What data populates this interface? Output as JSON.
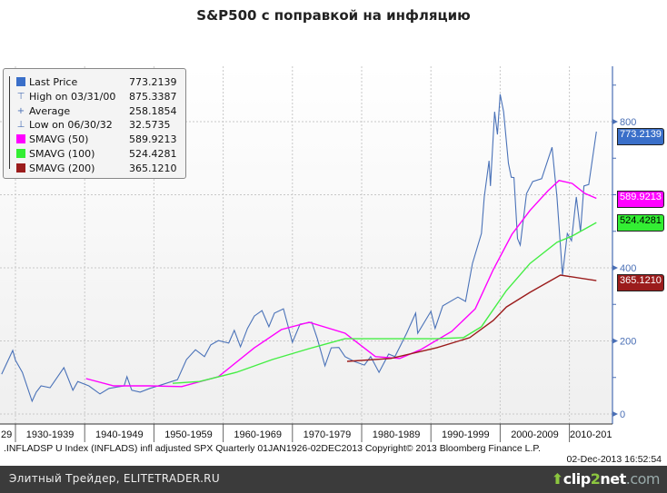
{
  "title": "S&P500  с поправкой на инфляцию",
  "legend": [
    {
      "label": "Last Price",
      "value": "773.2139",
      "color": "#3a6fc9",
      "kind": "swatch"
    },
    {
      "label": "High on 03/31/00",
      "value": "875.3387",
      "kind": "high"
    },
    {
      "label": "Average",
      "value": "258.1854",
      "kind": "avg"
    },
    {
      "label": "Low on 06/30/32",
      "value": "32.5735",
      "kind": "low"
    },
    {
      "label": "SMAVG (50)",
      "value": "589.9213",
      "color": "#ff00ff",
      "kind": "swatch"
    },
    {
      "label": "SMAVG (100)",
      "value": "524.4281",
      "color": "#33ee33",
      "kind": "swatch"
    },
    {
      "label": "SMAVG (200)",
      "value": "365.1210",
      "color": "#9b1c1c",
      "kind": "swatch"
    }
  ],
  "footer": {
    "left": ".INFLADSP U Index (INFLADS) infl adjusted SPX  Quarterly 01JAN1926-02DEC2013   Copyright© 2013 Bloomberg Finance L.P.",
    "right": "02-Dec-2013 16:52:54"
  },
  "bottom_bar": {
    "text": "Элитный Трейдер, ELITETRADER.RU",
    "logo": "clip2net.com",
    "logo_parts": [
      "clip",
      "2",
      "net",
      ".com"
    ]
  },
  "chart_data": {
    "type": "line",
    "title": "S&P500  с поправкой на инфляцию",
    "xlabel": "",
    "ylabel": "",
    "xlim": [
      1928.9,
      2014.6
    ],
    "ylim": [
      -20,
      980
    ],
    "yticks": [
      0,
      200,
      400,
      800
    ],
    "xtick_labels": [
      "29",
      "1930-1939",
      "1940-1949",
      "1950-1959",
      "1960-1969",
      "1970-1979",
      "1980-1989",
      "1990-1999",
      "2000-2009",
      "2010-201"
    ],
    "xtick_starts": [
      1929,
      1930,
      1940,
      1950,
      1960,
      1970,
      1980,
      1990,
      2000,
      2010
    ],
    "grid": true,
    "legend_position": "top-left",
    "series": [
      {
        "name": "Last Price",
        "color": "#4a72b8",
        "last_label": "773.2139",
        "points": [
          [
            1928,
            109
          ],
          [
            1929.6,
            174
          ],
          [
            1930,
            147
          ],
          [
            1931,
            114
          ],
          [
            1932.4,
            35
          ],
          [
            1933,
            60
          ],
          [
            1933.7,
            77
          ],
          [
            1935,
            72
          ],
          [
            1937,
            127
          ],
          [
            1938.3,
            65
          ],
          [
            1939,
            89
          ],
          [
            1940.6,
            77
          ],
          [
            1942.2,
            55
          ],
          [
            1943.5,
            70
          ],
          [
            1945.7,
            77
          ],
          [
            1946.1,
            102
          ],
          [
            1946.8,
            65
          ],
          [
            1948,
            60
          ],
          [
            1949.4,
            70
          ],
          [
            1951.1,
            80
          ],
          [
            1953.4,
            94
          ],
          [
            1954.7,
            149
          ],
          [
            1956,
            176
          ],
          [
            1957.3,
            157
          ],
          [
            1958.2,
            189
          ],
          [
            1959.3,
            201
          ],
          [
            1960.8,
            194
          ],
          [
            1961.6,
            229
          ],
          [
            1962.5,
            184
          ],
          [
            1963.5,
            234
          ],
          [
            1964.5,
            268
          ],
          [
            1965.6,
            283
          ],
          [
            1966.6,
            239
          ],
          [
            1967.4,
            276
          ],
          [
            1968.7,
            288
          ],
          [
            1970,
            196
          ],
          [
            1971.1,
            246
          ],
          [
            1972.8,
            251
          ],
          [
            1973.6,
            206
          ],
          [
            1974.7,
            132
          ],
          [
            1975.6,
            181
          ],
          [
            1976.7,
            182
          ],
          [
            1977.6,
            157
          ],
          [
            1978.9,
            144
          ],
          [
            1980.4,
            134
          ],
          [
            1981.3,
            157
          ],
          [
            1982.5,
            114
          ],
          [
            1983.9,
            164
          ],
          [
            1984.8,
            157
          ],
          [
            1986.5,
            221
          ],
          [
            1987.8,
            276
          ],
          [
            1988.1,
            221
          ],
          [
            1990,
            281
          ],
          [
            1990.6,
            234
          ],
          [
            1991.7,
            296
          ],
          [
            1993.9,
            320
          ],
          [
            1995,
            308
          ],
          [
            1996,
            412
          ],
          [
            1997.3,
            494
          ],
          [
            1997.7,
            594
          ],
          [
            1998.4,
            693
          ],
          [
            1998.6,
            624
          ],
          [
            1999.2,
            827
          ],
          [
            1999.6,
            765
          ],
          [
            2000.0,
            875
          ],
          [
            2000.5,
            827
          ],
          [
            2001.2,
            686
          ],
          [
            2001.6,
            648
          ],
          [
            2002,
            647
          ],
          [
            2002.5,
            480
          ],
          [
            2002.9,
            462
          ],
          [
            2003.8,
            603
          ],
          [
            2004.7,
            636
          ],
          [
            2006,
            644
          ],
          [
            2007.5,
            730
          ],
          [
            2008.2,
            594
          ],
          [
            2009.0,
            380
          ],
          [
            2009.7,
            494
          ],
          [
            2010.3,
            474
          ],
          [
            2011,
            594
          ],
          [
            2011.6,
            499
          ],
          [
            2012.1,
            624
          ],
          [
            2012.8,
            628
          ],
          [
            2013.9,
            773
          ]
        ]
      },
      {
        "name": "SMAVG (50)",
        "color": "#ff00ff",
        "last_label": "589.9213",
        "points": [
          [
            1940.2,
            97
          ],
          [
            1944.2,
            77
          ],
          [
            1949.4,
            77
          ],
          [
            1954,
            75
          ],
          [
            1959.3,
            102
          ],
          [
            1964.5,
            181
          ],
          [
            1968.4,
            231
          ],
          [
            1972.4,
            251
          ],
          [
            1977.6,
            221
          ],
          [
            1982,
            157
          ],
          [
            1985.5,
            152
          ],
          [
            1988.5,
            176
          ],
          [
            1993,
            226
          ],
          [
            1996.4,
            288
          ],
          [
            1999,
            395
          ],
          [
            2001.7,
            492
          ],
          [
            2004.3,
            557
          ],
          [
            2006.9,
            611
          ],
          [
            2008.5,
            639
          ],
          [
            2010.4,
            631
          ],
          [
            2012.2,
            604
          ],
          [
            2013.9,
            590
          ]
        ]
      },
      {
        "name": "SMAVG (100)",
        "color": "#44ee44",
        "last_label": "524.4281",
        "points": [
          [
            1952.7,
            84
          ],
          [
            1956.6,
            89
          ],
          [
            1961.9,
            114
          ],
          [
            1967.1,
            149
          ],
          [
            1972.4,
            179
          ],
          [
            1977.6,
            206
          ],
          [
            1984.2,
            206
          ],
          [
            1990.8,
            206
          ],
          [
            1994.7,
            209
          ],
          [
            1997.3,
            239
          ],
          [
            2000.9,
            338
          ],
          [
            2004.3,
            412
          ],
          [
            2008.2,
            470
          ],
          [
            2010.4,
            487
          ],
          [
            2013.9,
            524
          ]
        ]
      },
      {
        "name": "SMAVG (200)",
        "color": "#9b1c1c",
        "last_label": "365.1210",
        "points": [
          [
            1977.9,
            144
          ],
          [
            1984.2,
            152
          ],
          [
            1990.8,
            181
          ],
          [
            1995.6,
            209
          ],
          [
            1999,
            256
          ],
          [
            2000.9,
            293
          ],
          [
            2004.3,
            333
          ],
          [
            2008.7,
            380
          ],
          [
            2013.9,
            365
          ]
        ]
      }
    ]
  }
}
